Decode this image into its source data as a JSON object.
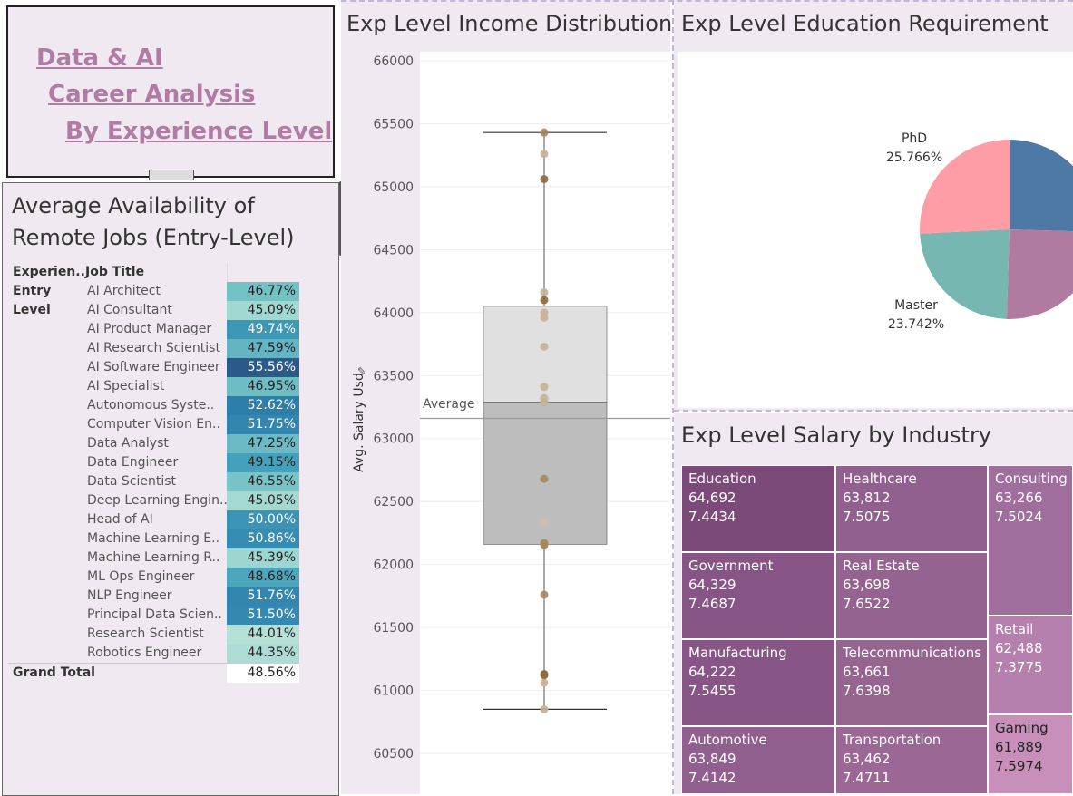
{
  "title_block": {
    "line1": "Data & AI",
    "line2": "Career Analysis",
    "line3": "By Experience Level"
  },
  "remote_jobs": {
    "title": "Average Availability of Remote Jobs (Entry-Level)",
    "col_experience": "Experien..",
    "col_job_title": "Job Title",
    "experience_line1": "Entry",
    "experience_line2": "Level",
    "grand_total_label": "Grand Total",
    "grand_total_value": "48.56%",
    "rows": [
      {
        "job": "AI Architect",
        "value": "46.77%",
        "color": "#72c1c4"
      },
      {
        "job": "AI Consultant",
        "value": "45.09%",
        "color": "#a2d8d2"
      },
      {
        "job": "AI Product Manager",
        "value": "49.74%",
        "color": "#3d97b7"
      },
      {
        "job": "AI Research Scientist",
        "value": "47.59%",
        "color": "#64b4c3"
      },
      {
        "job": "AI Software Engineer",
        "value": "55.56%",
        "color": "#2a5a8a"
      },
      {
        "job": "AI Specialist",
        "value": "46.95%",
        "color": "#6dbdc3"
      },
      {
        "job": "Autonomous Syste..",
        "value": "52.62%",
        "color": "#2e7eac"
      },
      {
        "job": "Computer Vision En..",
        "value": "51.75%",
        "color": "#3286b0"
      },
      {
        "job": "Data Analyst",
        "value": "47.25%",
        "color": "#6bbac4"
      },
      {
        "job": "Data Engineer",
        "value": "49.15%",
        "color": "#45a1bb"
      },
      {
        "job": "Data Scientist",
        "value": "46.55%",
        "color": "#78c3c5"
      },
      {
        "job": "Deep Learning Engin..",
        "value": "45.05%",
        "color": "#a4d9d2"
      },
      {
        "job": "Head of AI",
        "value": "50.00%",
        "color": "#3b93b6"
      },
      {
        "job": "Machine Learning E..",
        "value": "50.86%",
        "color": "#368db3"
      },
      {
        "job": "Machine Learning R..",
        "value": "45.39%",
        "color": "#9dd5d0"
      },
      {
        "job": "ML Ops Engineer",
        "value": "48.68%",
        "color": "#4ca7bd"
      },
      {
        "job": "NLP Engineer",
        "value": "51.76%",
        "color": "#3286b0"
      },
      {
        "job": "Principal Data Scien..",
        "value": "51.50%",
        "color": "#3389b1"
      },
      {
        "job": "Research Scientist",
        "value": "44.01%",
        "color": "#b4e0d6"
      },
      {
        "job": "Robotics Engineer",
        "value": "44.35%",
        "color": "#aedcd4"
      }
    ]
  },
  "income": {
    "title": "Exp Level Income Distribution",
    "average_label": "Average"
  },
  "education": {
    "title": "Exp Level Education Requirement"
  },
  "industry": {
    "title": "Exp Level Salary by Industry",
    "cells": [
      {
        "name": "Education",
        "salary": "64,692",
        "metric": "7.4434",
        "color": "#7b4a78"
      },
      {
        "name": "Healthcare",
        "salary": "63,812",
        "metric": "7.5075",
        "color": "#91608e"
      },
      {
        "name": "Consulting",
        "salary": "63,266",
        "metric": "7.5024",
        "color": "#a06e9c"
      },
      {
        "name": "Government",
        "salary": "64,329",
        "metric": "7.4687",
        "color": "#865485"
      },
      {
        "name": "Real Estate",
        "salary": "63,698",
        "metric": "7.6522",
        "color": "#94638f"
      },
      {
        "name": "Retail",
        "salary": "62,488",
        "metric": "7.3775",
        "color": "#b680ae"
      },
      {
        "name": "Manufacturing",
        "salary": "64,222",
        "metric": "7.5455",
        "color": "#885686"
      },
      {
        "name": "Telecommunications",
        "salary": "63,661",
        "metric": "7.6398",
        "color": "#96658f"
      },
      {
        "name": "Gaming",
        "salary": "61,889",
        "metric": "7.5974",
        "color": "#c78fba"
      },
      {
        "name": "Automotive",
        "salary": "63,849",
        "metric": "7.4142",
        "color": "#915f8d"
      },
      {
        "name": "Transportation",
        "salary": "63,462",
        "metric": "7.4711",
        "color": "#9b6895"
      }
    ]
  },
  "chart_data": [
    {
      "type": "boxplot",
      "title": "Exp Level Income Distribution",
      "ylabel": "Avg. Salary Usd",
      "ylim": [
        60500,
        66000
      ],
      "y_ticks": [
        60500,
        61000,
        61500,
        62000,
        62500,
        63000,
        63500,
        64000,
        64500,
        65000,
        65500,
        66000
      ],
      "whisker_low": 60850,
      "q1": 62160,
      "median": 63290,
      "q3": 64050,
      "whisker_high": 65430,
      "average": 63160,
      "points": [
        65430,
        65260,
        65060,
        64160,
        64100,
        64000,
        63960,
        63730,
        63410,
        63320,
        63290,
        62680,
        62340,
        62170,
        62150,
        61760,
        61130,
        61120,
        61060,
        60850
      ],
      "point_colors": [
        "#a5865e",
        "#c6b095",
        "#8c6a3c",
        "#c6b095",
        "#8c6a3c",
        "#c6b095",
        "#c6b095",
        "#c6b095",
        "#c6b095",
        "#c6b095",
        "#c6b095",
        "#a5865e",
        "#d0bfa8",
        "#a5865e",
        "#a5865e",
        "#a5865e",
        "#8c6a3c",
        "#8c6a3c",
        "#c6b095",
        "#c6b095"
      ],
      "grid": true
    },
    {
      "type": "pie",
      "title": "Exp Level Education Requirement",
      "slices": [
        {
          "label": "PhD",
          "percent_label": "25.766%",
          "value": 25.766,
          "color": "#ff9da7"
        },
        {
          "label": "Master",
          "percent_label": "23.742%",
          "value": 23.742,
          "color": "#76b7b2"
        },
        {
          "label": "",
          "value": 25.0,
          "color": "#b07aa1"
        },
        {
          "label": "",
          "value": 25.492,
          "color": "#4e79a7"
        }
      ]
    },
    {
      "type": "treemap",
      "title": "Exp Level Salary by Industry"
    }
  ]
}
